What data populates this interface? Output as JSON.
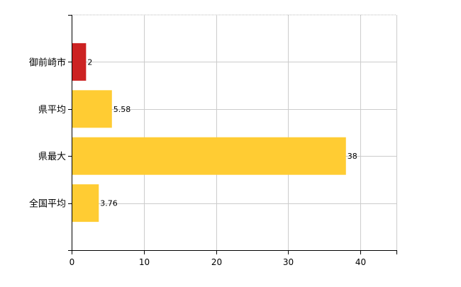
{
  "chart_data": {
    "type": "bar",
    "orientation": "horizontal",
    "categories": [
      "御前崎市",
      "県平均",
      "県最大",
      "全国平均"
    ],
    "values": [
      2,
      5.58,
      38,
      3.76
    ],
    "data_labels": [
      "2",
      "5.58",
      "38",
      "3.76"
    ],
    "bar_colors": [
      "#cc2222",
      "#ffcc33",
      "#ffcc33",
      "#ffcc33"
    ],
    "xlim": [
      0,
      45
    ],
    "x_ticks": [
      0,
      10,
      20,
      30,
      40
    ],
    "x_tick_labels": [
      "0",
      "10",
      "20",
      "30",
      "40"
    ],
    "grid": true,
    "grid_color": "#cccccc",
    "title": "",
    "xlabel": "",
    "ylabel": ""
  }
}
